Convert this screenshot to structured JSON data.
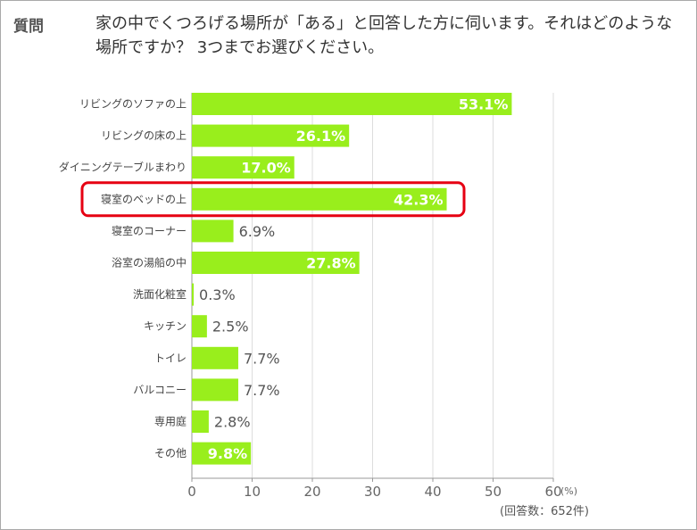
{
  "question": {
    "label": "質問",
    "text": "家の中でくつろげる場所が「ある」と回答した方に伺います。それはどのような場所ですか？ 3つまでお選びください。"
  },
  "chart_data": {
    "type": "bar",
    "orientation": "horizontal",
    "categories": [
      "リビングのソファの上",
      "リビングの床の上",
      "ダイニングテーブルまわり",
      "寝室のベッドの上",
      "寝室のコーナー",
      "浴室の湯船の中",
      "洗面化粧室",
      "キッチン",
      "トイレ",
      "バルコニー",
      "専用庭",
      "その他"
    ],
    "values": [
      53.1,
      26.1,
      17.0,
      42.3,
      6.9,
      27.8,
      0.3,
      2.5,
      7.7,
      7.7,
      2.8,
      9.8
    ],
    "value_labels": [
      "53.1%",
      "26.1%",
      "17.0%",
      "42.3%",
      "6.9%",
      "27.8%",
      "0.3%",
      "2.5%",
      "7.7%",
      "7.7%",
      "2.8%",
      "9.8%"
    ],
    "highlighted_category": "寝室のベッドの上",
    "xlim": [
      0,
      60
    ],
    "xticks": [
      0,
      10,
      20,
      30,
      40,
      50,
      60
    ],
    "unit_label": "(%)",
    "note": "(回答数：652件)",
    "grid": true,
    "colors": {
      "bar": "#99ee1c",
      "highlight": "#e60012",
      "grid": "#dddddd",
      "axis": "#999999"
    }
  }
}
